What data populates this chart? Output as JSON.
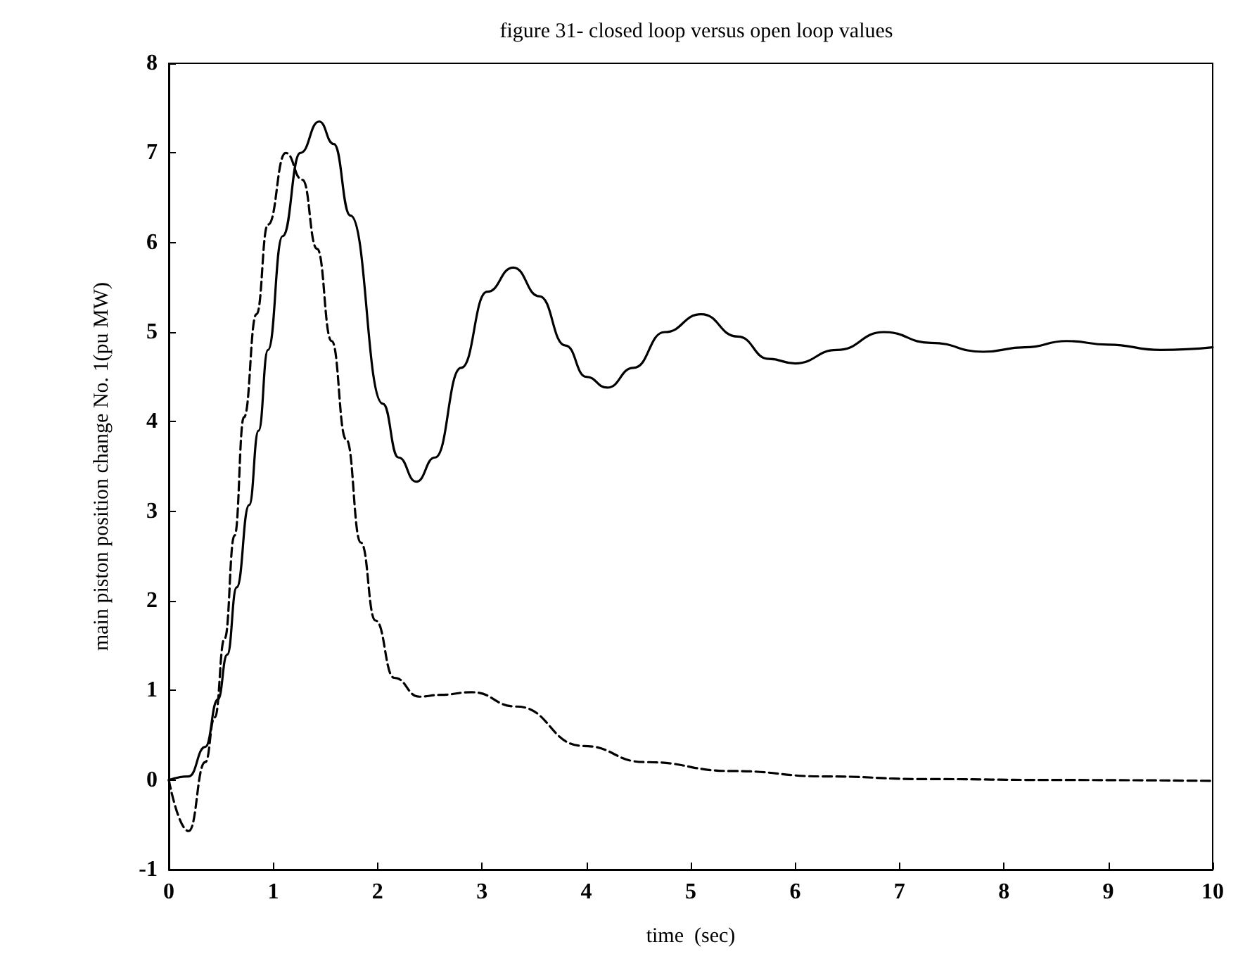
{
  "chart_data": {
    "type": "line",
    "title": "figure 31- closed loop versus open loop values",
    "xlabel": "time  (sec)",
    "ylabel": "main piston position change No. 1(pu MW)",
    "xlim": [
      0,
      10
    ],
    "xticks": [
      0,
      1,
      2,
      3,
      4,
      5,
      6,
      7,
      8,
      9,
      10
    ],
    "ylim": [
      -1,
      8
    ],
    "yticks": [
      -1,
      0,
      1,
      2,
      3,
      4,
      5,
      6,
      7,
      8
    ],
    "grid": false,
    "marker": "none",
    "series": [
      {
        "color": "#000000",
        "line_style": "solid",
        "x": [
          0,
          0.19,
          0.35,
          0.47,
          0.56,
          0.65,
          0.77,
          0.86,
          0.95,
          1.09,
          1.26,
          1.44,
          1.58,
          1.74,
          2.05,
          2.2,
          2.37,
          2.55,
          2.8,
          3.05,
          3.3,
          3.55,
          3.8,
          4.0,
          4.2,
          4.45,
          4.75,
          5.1,
          5.45,
          5.75,
          6.0,
          6.4,
          6.85,
          7.3,
          7.8,
          8.2,
          8.6,
          9.0,
          9.5,
          10
        ],
        "values": [
          0,
          0.04,
          0.37,
          0.9,
          1.4,
          2.15,
          3.07,
          3.9,
          4.8,
          6.07,
          7.0,
          7.35,
          7.1,
          6.3,
          4.2,
          3.6,
          3.33,
          3.6,
          4.6,
          5.45,
          5.72,
          5.4,
          4.85,
          4.5,
          4.38,
          4.6,
          5.0,
          5.2,
          4.95,
          4.7,
          4.65,
          4.8,
          5.0,
          4.88,
          4.78,
          4.83,
          4.9,
          4.86,
          4.8,
          4.83
        ]
      },
      {
        "color": "#000000",
        "line_style": "dashed",
        "x": [
          0,
          0.19,
          0.35,
          0.44,
          0.535,
          0.63,
          0.72,
          0.84,
          0.95,
          1.12,
          1.28,
          1.42,
          1.56,
          1.7,
          1.84,
          1.98,
          2.16,
          2.4,
          2.6,
          2.9,
          3.33,
          3.97,
          4.56,
          5.4,
          6.28,
          7.26,
          8.5,
          10
        ],
        "values": [
          0,
          -0.57,
          0.2,
          0.7,
          1.58,
          2.73,
          4.05,
          5.2,
          6.2,
          7.0,
          6.7,
          5.93,
          4.9,
          3.8,
          2.65,
          1.78,
          1.14,
          0.93,
          0.95,
          0.98,
          0.82,
          0.38,
          0.2,
          0.1,
          0.04,
          0.01,
          0,
          -0.01
        ]
      }
    ]
  }
}
